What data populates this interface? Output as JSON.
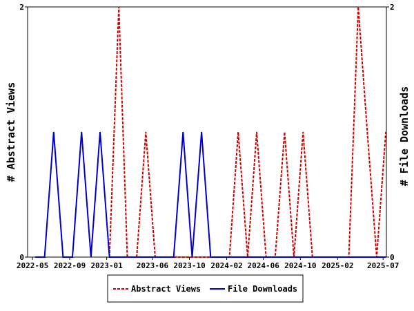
{
  "chart_data": {
    "type": "line",
    "x_ticks": [
      "2022-05",
      "2022-09",
      "2023-01",
      "2023-06",
      "2023-10",
      "2024-02",
      "2024-06",
      "2024-10",
      "2025-02",
      "2025-07"
    ],
    "ylabel_left": "# Abstract Views",
    "ylabel_right": "# File Downloads",
    "ylim_left": [
      0,
      2
    ],
    "ylim_right": [
      0,
      2
    ],
    "y_ticks_left": [
      "0",
      "2"
    ],
    "y_ticks_right": [
      "0",
      "2"
    ],
    "grid": false,
    "legend_position": "bottom-center",
    "series": [
      {
        "name": "Abstract Views",
        "axis": "left",
        "color": "#cc0000",
        "dash": "dashed",
        "points": [
          [
            "2023-01-10",
            0
          ],
          [
            "2023-02-10",
            2
          ],
          [
            "2023-03-10",
            0
          ],
          [
            "2023-04-10",
            0
          ],
          [
            "2023-05-10",
            1
          ],
          [
            "2023-06-10",
            0
          ],
          [
            "2024-02-10",
            0
          ],
          [
            "2024-03-10",
            1
          ],
          [
            "2024-04-10",
            0
          ],
          [
            "2024-05-10",
            1
          ],
          [
            "2024-06-10",
            0
          ],
          [
            "2024-07-10",
            0
          ],
          [
            "2024-08-10",
            1
          ],
          [
            "2024-09-10",
            0
          ],
          [
            "2024-10-10",
            1
          ],
          [
            "2024-11-10",
            0
          ],
          [
            "2025-03-10",
            0
          ],
          [
            "2025-04-10",
            2
          ],
          [
            "2025-05-10",
            1
          ],
          [
            "2025-06-10",
            0
          ],
          [
            "2025-07-10",
            1
          ]
        ]
      },
      {
        "name": "File Downloads",
        "axis": "right",
        "color": "#0000cc",
        "dash": "solid",
        "points": [
          [
            "2022-05-10",
            0
          ],
          [
            "2022-06-10",
            0
          ],
          [
            "2022-07-10",
            1
          ],
          [
            "2022-08-10",
            0
          ],
          [
            "2022-09-10",
            0
          ],
          [
            "2022-10-10",
            1
          ],
          [
            "2022-11-10",
            0
          ],
          [
            "2022-12-10",
            1
          ],
          [
            "2023-01-10",
            0
          ],
          [
            "2023-08-10",
            0
          ],
          [
            "2023-09-10",
            1
          ],
          [
            "2023-10-10",
            0
          ],
          [
            "2023-11-10",
            1
          ],
          [
            "2023-12-10",
            0
          ],
          [
            "2025-07-10",
            0
          ]
        ]
      }
    ]
  }
}
